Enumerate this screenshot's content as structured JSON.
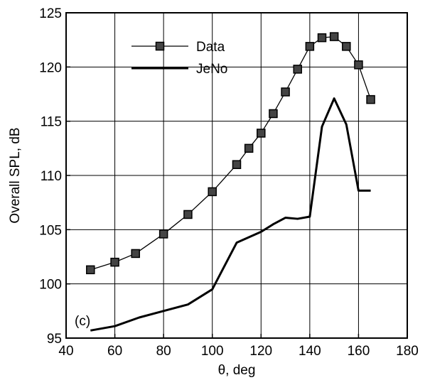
{
  "chart_data": {
    "type": "line",
    "xlabel": "θ, deg",
    "ylabel": "Overall SPL, dB",
    "xlim": [
      40,
      180
    ],
    "ylim": [
      95,
      125
    ],
    "xticks": [
      40,
      60,
      80,
      100,
      120,
      140,
      160,
      180
    ],
    "yticks": [
      95,
      100,
      105,
      110,
      115,
      120,
      125
    ],
    "grid": true,
    "legend_position": "top-left",
    "annotation": "(c)",
    "series": [
      {
        "name": "Data",
        "marker": "square",
        "color": "#444444",
        "x": [
          50,
          60,
          68.5,
          80,
          90,
          100,
          110,
          115,
          120,
          125,
          130,
          135,
          140,
          145,
          150,
          155,
          160,
          165
        ],
        "y": [
          101.3,
          102.0,
          102.8,
          104.6,
          106.4,
          108.5,
          111.0,
          112.5,
          113.9,
          115.7,
          117.7,
          119.8,
          121.9,
          122.7,
          122.8,
          121.9,
          120.2,
          117.0
        ]
      },
      {
        "name": "JeNo",
        "marker": "none",
        "color": "#000000",
        "x": [
          50,
          60,
          70,
          80,
          90,
          100,
          110,
          115,
          120,
          125,
          130,
          135,
          140,
          145,
          150,
          155,
          160,
          165
        ],
        "y": [
          95.7,
          96.1,
          96.9,
          97.5,
          98.1,
          99.5,
          103.8,
          104.3,
          104.8,
          105.5,
          106.1,
          106.0,
          106.2,
          114.5,
          117.1,
          114.7,
          108.6,
          108.6
        ]
      }
    ]
  }
}
